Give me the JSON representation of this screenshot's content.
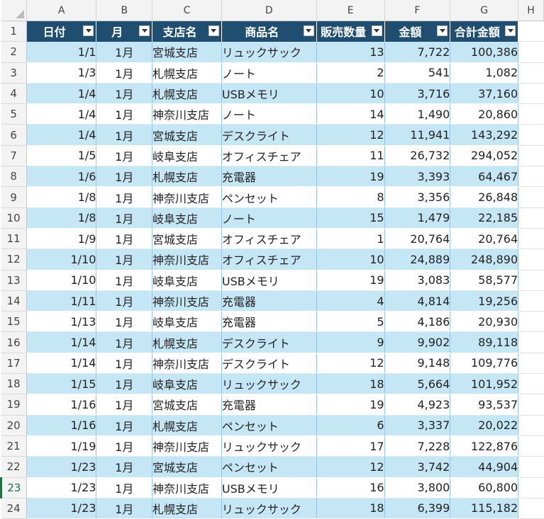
{
  "columns": [
    "A",
    "B",
    "C",
    "D",
    "E",
    "F",
    "G",
    "H"
  ],
  "headers": [
    "日付",
    "月",
    "支店名",
    "商品名",
    "販売数量",
    "金額",
    "合計金額"
  ],
  "rows": [
    {
      "n": "1"
    },
    {
      "n": "2",
      "date": "1/1",
      "month": "1月",
      "branch": "宮城支店",
      "product": "リュックサック",
      "qty": "13",
      "price": "7,722",
      "total": "100,386"
    },
    {
      "n": "3",
      "date": "1/3",
      "month": "1月",
      "branch": "札幌支店",
      "product": "ノート",
      "qty": "2",
      "price": "541",
      "total": "1,082"
    },
    {
      "n": "4",
      "date": "1/4",
      "month": "1月",
      "branch": "札幌支店",
      "product": "USBメモリ",
      "qty": "10",
      "price": "3,716",
      "total": "37,160"
    },
    {
      "n": "5",
      "date": "1/4",
      "month": "1月",
      "branch": "神奈川支店",
      "product": "ノート",
      "qty": "14",
      "price": "1,490",
      "total": "20,860"
    },
    {
      "n": "6",
      "date": "1/4",
      "month": "1月",
      "branch": "宮城支店",
      "product": "デスクライト",
      "qty": "12",
      "price": "11,941",
      "total": "143,292"
    },
    {
      "n": "7",
      "date": "1/5",
      "month": "1月",
      "branch": "岐阜支店",
      "product": "オフィスチェア",
      "qty": "11",
      "price": "26,732",
      "total": "294,052"
    },
    {
      "n": "8",
      "date": "1/6",
      "month": "1月",
      "branch": "札幌支店",
      "product": "充電器",
      "qty": "19",
      "price": "3,393",
      "total": "64,467"
    },
    {
      "n": "9",
      "date": "1/8",
      "month": "1月",
      "branch": "神奈川支店",
      "product": "ペンセット",
      "qty": "8",
      "price": "3,356",
      "total": "26,848"
    },
    {
      "n": "10",
      "date": "1/8",
      "month": "1月",
      "branch": "岐阜支店",
      "product": "ノート",
      "qty": "15",
      "price": "1,479",
      "total": "22,185"
    },
    {
      "n": "11",
      "date": "1/9",
      "month": "1月",
      "branch": "宮城支店",
      "product": "オフィスチェア",
      "qty": "1",
      "price": "20,764",
      "total": "20,764"
    },
    {
      "n": "12",
      "date": "1/10",
      "month": "1月",
      "branch": "神奈川支店",
      "product": "オフィスチェア",
      "qty": "10",
      "price": "24,889",
      "total": "248,890"
    },
    {
      "n": "13",
      "date": "1/10",
      "month": "1月",
      "branch": "岐阜支店",
      "product": "USBメモリ",
      "qty": "19",
      "price": "3,083",
      "total": "58,577"
    },
    {
      "n": "14",
      "date": "1/11",
      "month": "1月",
      "branch": "神奈川支店",
      "product": "充電器",
      "qty": "4",
      "price": "4,814",
      "total": "19,256"
    },
    {
      "n": "15",
      "date": "1/13",
      "month": "1月",
      "branch": "岐阜支店",
      "product": "充電器",
      "qty": "5",
      "price": "4,186",
      "total": "20,930"
    },
    {
      "n": "16",
      "date": "1/14",
      "month": "1月",
      "branch": "札幌支店",
      "product": "デスクライト",
      "qty": "9",
      "price": "9,902",
      "total": "89,118"
    },
    {
      "n": "17",
      "date": "1/14",
      "month": "1月",
      "branch": "神奈川支店",
      "product": "デスクライト",
      "qty": "12",
      "price": "9,148",
      "total": "109,776"
    },
    {
      "n": "18",
      "date": "1/15",
      "month": "1月",
      "branch": "岐阜支店",
      "product": "リュックサック",
      "qty": "18",
      "price": "5,664",
      "total": "101,952"
    },
    {
      "n": "19",
      "date": "1/16",
      "month": "1月",
      "branch": "宮城支店",
      "product": "充電器",
      "qty": "19",
      "price": "4,923",
      "total": "93,537"
    },
    {
      "n": "20",
      "date": "1/16",
      "month": "1月",
      "branch": "札幌支店",
      "product": "ペンセット",
      "qty": "6",
      "price": "3,337",
      "total": "20,022"
    },
    {
      "n": "21",
      "date": "1/19",
      "month": "1月",
      "branch": "神奈川支店",
      "product": "リュックサック",
      "qty": "17",
      "price": "7,228",
      "total": "122,876"
    },
    {
      "n": "22",
      "date": "1/23",
      "month": "1月",
      "branch": "宮城支店",
      "product": "ペンセット",
      "qty": "12",
      "price": "3,742",
      "total": "44,904"
    },
    {
      "n": "23",
      "date": "1/23",
      "month": "1月",
      "branch": "神奈川支店",
      "product": "USBメモリ",
      "qty": "16",
      "price": "3,800",
      "total": "60,800"
    },
    {
      "n": "24",
      "date": "1/23",
      "month": "1月",
      "branch": "札幌支店",
      "product": "リュックサック",
      "qty": "18",
      "price": "6,399",
      "total": "115,182"
    }
  ],
  "active_row": "23",
  "colors": {
    "header_bg": "#1f4e70",
    "band": "#c5e6f5",
    "active": "#1e7145"
  }
}
